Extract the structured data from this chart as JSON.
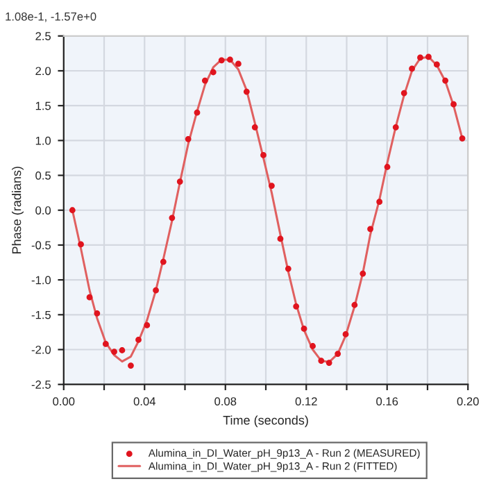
{
  "chart_data": {
    "type": "scatter",
    "xlabel": "Time (seconds)",
    "ylabel": "Phase (radians)",
    "annotations": [
      "1.08e-1, -1.57e+0"
    ],
    "xlim": [
      0,
      0.2
    ],
    "ylim": [
      -2.5,
      2.5
    ],
    "xticks": [
      {
        "value": 0,
        "label": "0.00"
      },
      {
        "value": 0.02,
        "label": null
      },
      0.04,
      {
        "value": 0.06,
        "label": null
      },
      0.08,
      {
        "value": 0.1,
        "label": null
      },
      0.12,
      {
        "value": 0.14,
        "label": null
      },
      0.16,
      {
        "value": 0.18,
        "label": null
      },
      {
        "value": 0.2,
        "label": "0.20"
      }
    ],
    "yticks": [
      -2.5,
      {
        "value": -2,
        "label": "-2.0"
      },
      -1.5,
      {
        "value": -1,
        "label": "-1.0"
      },
      -0.5,
      {
        "value": 0,
        "label": "0.0"
      },
      0.5,
      {
        "value": 1,
        "label": "1.0"
      },
      1.5,
      {
        "value": 2,
        "label": "2.0"
      },
      2.5
    ],
    "grid": true,
    "legend": "bottom",
    "series": [
      {
        "name": "Alumina_in_DI_Water_pH_9p13_A - Run 2 (MEASURED)",
        "marker": "circle",
        "color": "#e0141e",
        "x": [
          0.0043,
          0.0085,
          0.0128,
          0.0165,
          0.0208,
          0.025,
          0.0289,
          0.0332,
          0.037,
          0.0412,
          0.0456,
          0.0493,
          0.0536,
          0.0575,
          0.0616,
          0.066,
          0.0699,
          0.074,
          0.0781,
          0.0823,
          0.0864,
          0.0905,
          0.0946,
          0.0988,
          0.1029,
          0.1072,
          0.1111,
          0.115,
          0.1189,
          0.1232,
          0.1274,
          0.1313,
          0.1356,
          0.1395,
          0.1439,
          0.148,
          0.1517,
          0.1562,
          0.1601,
          0.1643,
          0.1684,
          0.1723,
          0.1764,
          0.1805,
          0.1846,
          0.1888,
          0.1929,
          0.1972
        ],
        "values": [
          0.0,
          -0.49,
          -1.25,
          -1.48,
          -1.92,
          -2.03,
          -2.01,
          -2.23,
          -1.86,
          -1.65,
          -1.15,
          -0.74,
          -0.11,
          0.41,
          1.02,
          1.4,
          1.86,
          1.98,
          2.15,
          2.16,
          2.1,
          1.7,
          1.19,
          0.79,
          0.35,
          -0.41,
          -0.84,
          -1.38,
          -1.7,
          -1.95,
          -2.16,
          -2.19,
          -2.06,
          -1.78,
          -1.36,
          -0.91,
          -0.27,
          0.12,
          0.62,
          1.19,
          1.68,
          2.03,
          2.19,
          2.2,
          2.09,
          1.86,
          1.52,
          1.03
        ]
      },
      {
        "name": "Alumina_in_DI_Water_pH_9p13_A - Run 2 (FITTED)",
        "type": "line",
        "marker": "none",
        "line_style": "solid",
        "color": "#e06060",
        "x": [
          0.0043,
          0.0085,
          0.0128,
          0.0165,
          0.0208,
          0.025,
          0.0289,
          0.0332,
          0.037,
          0.0412,
          0.0456,
          0.0493,
          0.0536,
          0.0575,
          0.0616,
          0.066,
          0.0699,
          0.074,
          0.0781,
          0.0823,
          0.0864,
          0.0905,
          0.0946,
          0.0988,
          0.1029,
          0.1072,
          0.1111,
          0.115,
          0.1189,
          0.1232,
          0.1274,
          0.1313,
          0.1356,
          0.1395,
          0.1439,
          0.148,
          0.1517,
          0.1562,
          0.1601,
          0.1643,
          0.1684,
          0.1723,
          0.1764,
          0.1805,
          0.1846,
          0.1888,
          0.1929,
          0.1972
        ],
        "values": [
          0.0,
          -0.55,
          -1.15,
          -1.55,
          -1.9,
          -2.08,
          -2.17,
          -2.1,
          -1.88,
          -1.58,
          -1.15,
          -0.7,
          -0.15,
          0.4,
          0.95,
          1.42,
          1.8,
          2.05,
          2.16,
          2.16,
          2.02,
          1.72,
          1.25,
          0.75,
          0.25,
          -0.35,
          -0.88,
          -1.35,
          -1.72,
          -2.0,
          -2.16,
          -2.18,
          -2.06,
          -1.8,
          -1.38,
          -0.9,
          -0.35,
          0.15,
          0.68,
          1.2,
          1.65,
          2.0,
          2.18,
          2.2,
          2.08,
          1.85,
          1.5,
          1.03
        ]
      }
    ]
  }
}
